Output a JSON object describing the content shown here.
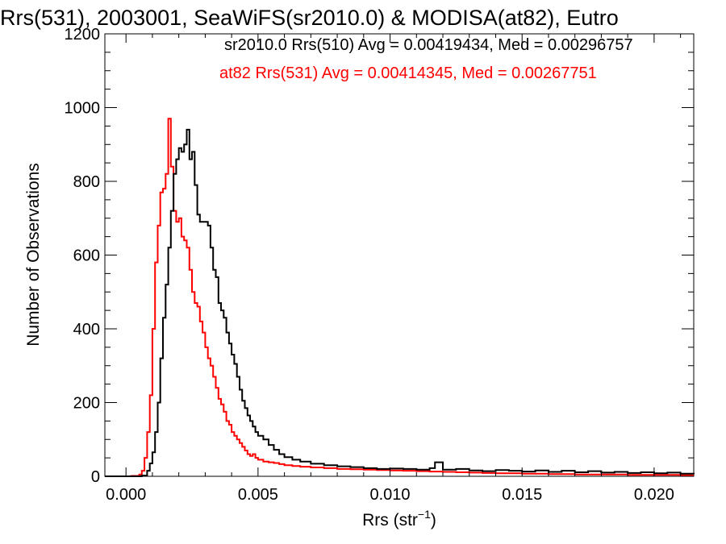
{
  "chart_data": {
    "type": "line",
    "title": "Rrs(531), 2003001, SeaWiFS(sr2010.0) & MODISA(at82), Eutro",
    "xlabel": "Rrs (str",
    "xlabel_sup": "−1",
    "xlabel_close": ")",
    "ylabel": "Number of Observations",
    "xlim": [
      -0.0008,
      0.0215
    ],
    "ylim": [
      0,
      1200
    ],
    "xticks": [
      0.0,
      0.005,
      0.01,
      0.015,
      0.02
    ],
    "xtick_labels": [
      "0.000",
      "0.005",
      "0.010",
      "0.015",
      "0.020"
    ],
    "yticks": [
      0,
      200,
      400,
      600,
      800,
      1000,
      1200
    ],
    "ytick_labels": [
      "0",
      "200",
      "400",
      "600",
      "800",
      "1000",
      "1200"
    ],
    "legend": [
      {
        "text": "sr2010.0 Rrs(510) Avg = 0.00419434, Med = 0.00296757",
        "color": "#000000"
      },
      {
        "text": "at82 Rrs(531) Avg = 0.00414345, Med = 0.00267751",
        "color": "#ff0000"
      }
    ],
    "series": [
      {
        "color": "#000000",
        "x": [
          -0.0008,
          0.0006,
          0.0008,
          0.0009,
          0.001,
          0.0011,
          0.0012,
          0.0013,
          0.0014,
          0.0015,
          0.0016,
          0.0017,
          0.0018,
          0.0019,
          0.002,
          0.0021,
          0.0022,
          0.0023,
          0.0024,
          0.0025,
          0.0026,
          0.0027,
          0.0028,
          0.0029,
          0.003,
          0.0031,
          0.0032,
          0.0033,
          0.0034,
          0.0035,
          0.0036,
          0.0037,
          0.0038,
          0.0039,
          0.004,
          0.0041,
          0.0042,
          0.0043,
          0.0044,
          0.0045,
          0.0046,
          0.0047,
          0.0048,
          0.0049,
          0.005,
          0.0052,
          0.0054,
          0.0056,
          0.0058,
          0.006,
          0.0063,
          0.0066,
          0.007,
          0.0075,
          0.008,
          0.0085,
          0.009,
          0.0095,
          0.01,
          0.0105,
          0.011,
          0.0115,
          0.0117,
          0.012,
          0.0125,
          0.013,
          0.0135,
          0.014,
          0.0145,
          0.015,
          0.0155,
          0.016,
          0.0165,
          0.017,
          0.0175,
          0.018,
          0.0185,
          0.019,
          0.0195,
          0.02,
          0.0205,
          0.021,
          0.0215
        ],
        "y": [
          0,
          2,
          15,
          35,
          65,
          120,
          200,
          320,
          430,
          520,
          620,
          720,
          820,
          860,
          890,
          880,
          900,
          940,
          860,
          880,
          790,
          710,
          690,
          690,
          690,
          680,
          620,
          560,
          540,
          470,
          450,
          430,
          390,
          360,
          330,
          305,
          270,
          235,
          205,
          185,
          165,
          150,
          135,
          120,
          110,
          100,
          85,
          72,
          60,
          52,
          45,
          40,
          34,
          30,
          27,
          25,
          22,
          20,
          21,
          20,
          18,
          22,
          38,
          18,
          20,
          16,
          14,
          17,
          15,
          13,
          16,
          12,
          15,
          11,
          14,
          10,
          12,
          9,
          11,
          8,
          10,
          7,
          6
        ]
      },
      {
        "color": "#ff0000",
        "x": [
          -0.0008,
          0.0002,
          0.0005,
          0.0006,
          0.0007,
          0.0008,
          0.0009,
          0.001,
          0.0011,
          0.0012,
          0.0013,
          0.0014,
          0.0015,
          0.0016,
          0.0017,
          0.0018,
          0.0019,
          0.002,
          0.0021,
          0.0022,
          0.0023,
          0.0024,
          0.0025,
          0.0026,
          0.0027,
          0.0028,
          0.0029,
          0.003,
          0.0031,
          0.0032,
          0.0033,
          0.0034,
          0.0035,
          0.0036,
          0.0037,
          0.0038,
          0.0039,
          0.004,
          0.0041,
          0.0042,
          0.0043,
          0.0044,
          0.0045,
          0.0046,
          0.0047,
          0.0048,
          0.0049,
          0.005,
          0.0052,
          0.0054,
          0.0056,
          0.0058,
          0.006,
          0.0063,
          0.0066,
          0.007,
          0.0075,
          0.008,
          0.0085,
          0.009,
          0.0095,
          0.01,
          0.0105,
          0.011,
          0.0115,
          0.012,
          0.0125,
          0.013,
          0.0135,
          0.014,
          0.0145,
          0.015,
          0.0155,
          0.016,
          0.0165,
          0.017,
          0.0175,
          0.018,
          0.0185,
          0.019,
          0.0195,
          0.02,
          0.0205,
          0.021,
          0.0215
        ],
        "y": [
          0,
          1,
          5,
          15,
          50,
          120,
          220,
          400,
          580,
          680,
          770,
          780,
          820,
          970,
          840,
          720,
          690,
          700,
          650,
          640,
          620,
          560,
          500,
          470,
          460,
          420,
          390,
          350,
          320,
          300,
          270,
          240,
          210,
          195,
          175,
          150,
          140,
          120,
          110,
          100,
          90,
          80,
          70,
          60,
          55,
          60,
          50,
          45,
          40,
          38,
          36,
          33,
          30,
          28,
          26,
          24,
          22,
          20,
          19,
          18,
          17,
          16,
          15,
          14,
          13,
          12,
          11,
          10,
          9,
          8,
          8,
          7,
          7,
          6,
          6,
          5,
          5,
          5,
          5,
          4,
          4,
          4,
          4,
          3,
          3
        ]
      }
    ]
  }
}
